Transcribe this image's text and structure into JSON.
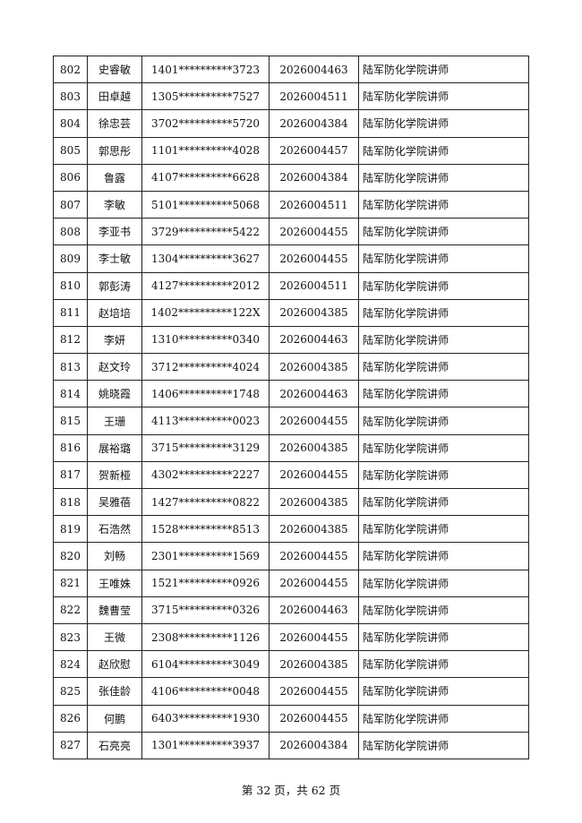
{
  "rows": [
    [
      "802",
      "史睿敏",
      "1401**********3723",
      "2026004463",
      "陆军防化学院讲师"
    ],
    [
      "803",
      "田卓越",
      "1305**********7527",
      "2026004511",
      "陆军防化学院讲师"
    ],
    [
      "804",
      "徐忠芸",
      "3702**********5720",
      "2026004384",
      "陆军防化学院讲师"
    ],
    [
      "805",
      "郭思彤",
      "1101**********4028",
      "2026004457",
      "陆军防化学院讲师"
    ],
    [
      "806",
      "鲁露",
      "4107**********6628",
      "2026004384",
      "陆军防化学院讲师"
    ],
    [
      "807",
      "李敏",
      "5101**********5068",
      "2026004511",
      "陆军防化学院讲师"
    ],
    [
      "808",
      "李亚书",
      "3729**********5422",
      "2026004455",
      "陆军防化学院讲师"
    ],
    [
      "809",
      "李士敏",
      "1304**********3627",
      "2026004455",
      "陆军防化学院讲师"
    ],
    [
      "810",
      "郭彭涛",
      "4127**********2012",
      "2026004511",
      "陆军防化学院讲师"
    ],
    [
      "811",
      "赵培培",
      "1402**********122X",
      "2026004385",
      "陆军防化学院讲师"
    ],
    [
      "812",
      "李妍",
      "1310**********0340",
      "2026004463",
      "陆军防化学院讲师"
    ],
    [
      "813",
      "赵文玲",
      "3712**********4024",
      "2026004385",
      "陆军防化学院讲师"
    ],
    [
      "814",
      "姚晓霞",
      "1406**********1748",
      "2026004463",
      "陆军防化学院讲师"
    ],
    [
      "815",
      "王珊",
      "4113**********0023",
      "2026004455",
      "陆军防化学院讲师"
    ],
    [
      "816",
      "展裕璐",
      "3715**********3129",
      "2026004385",
      "陆军防化学院讲师"
    ],
    [
      "817",
      "贺新桠",
      "4302**********2227",
      "2026004455",
      "陆军防化学院讲师"
    ],
    [
      "818",
      "吴雅蓓",
      "1427**********0822",
      "2026004385",
      "陆军防化学院讲师"
    ],
    [
      "819",
      "石浩然",
      "1528**********8513",
      "2026004385",
      "陆军防化学院讲师"
    ],
    [
      "820",
      "刘畅",
      "2301**********1569",
      "2026004455",
      "陆军防化学院讲师"
    ],
    [
      "821",
      "王唯姝",
      "1521**********0926",
      "2026004455",
      "陆军防化学院讲师"
    ],
    [
      "822",
      "魏曹莹",
      "3715**********0326",
      "2026004463",
      "陆军防化学院讲师"
    ],
    [
      "823",
      "王微",
      "2308**********1126",
      "2026004455",
      "陆军防化学院讲师"
    ],
    [
      "824",
      "赵欣慰",
      "6104**********3049",
      "2026004385",
      "陆军防化学院讲师"
    ],
    [
      "825",
      "张佳龄",
      "4106**********0048",
      "2026004455",
      "陆军防化学院讲师"
    ],
    [
      "826",
      "何鹏",
      "6403**********1930",
      "2026004455",
      "陆军防化学院讲师"
    ],
    [
      "827",
      "石亮亮",
      "1301**********3937",
      "2026004384",
      "陆军防化学院讲师"
    ]
  ],
  "footer": "第 32 页，共 62 页"
}
